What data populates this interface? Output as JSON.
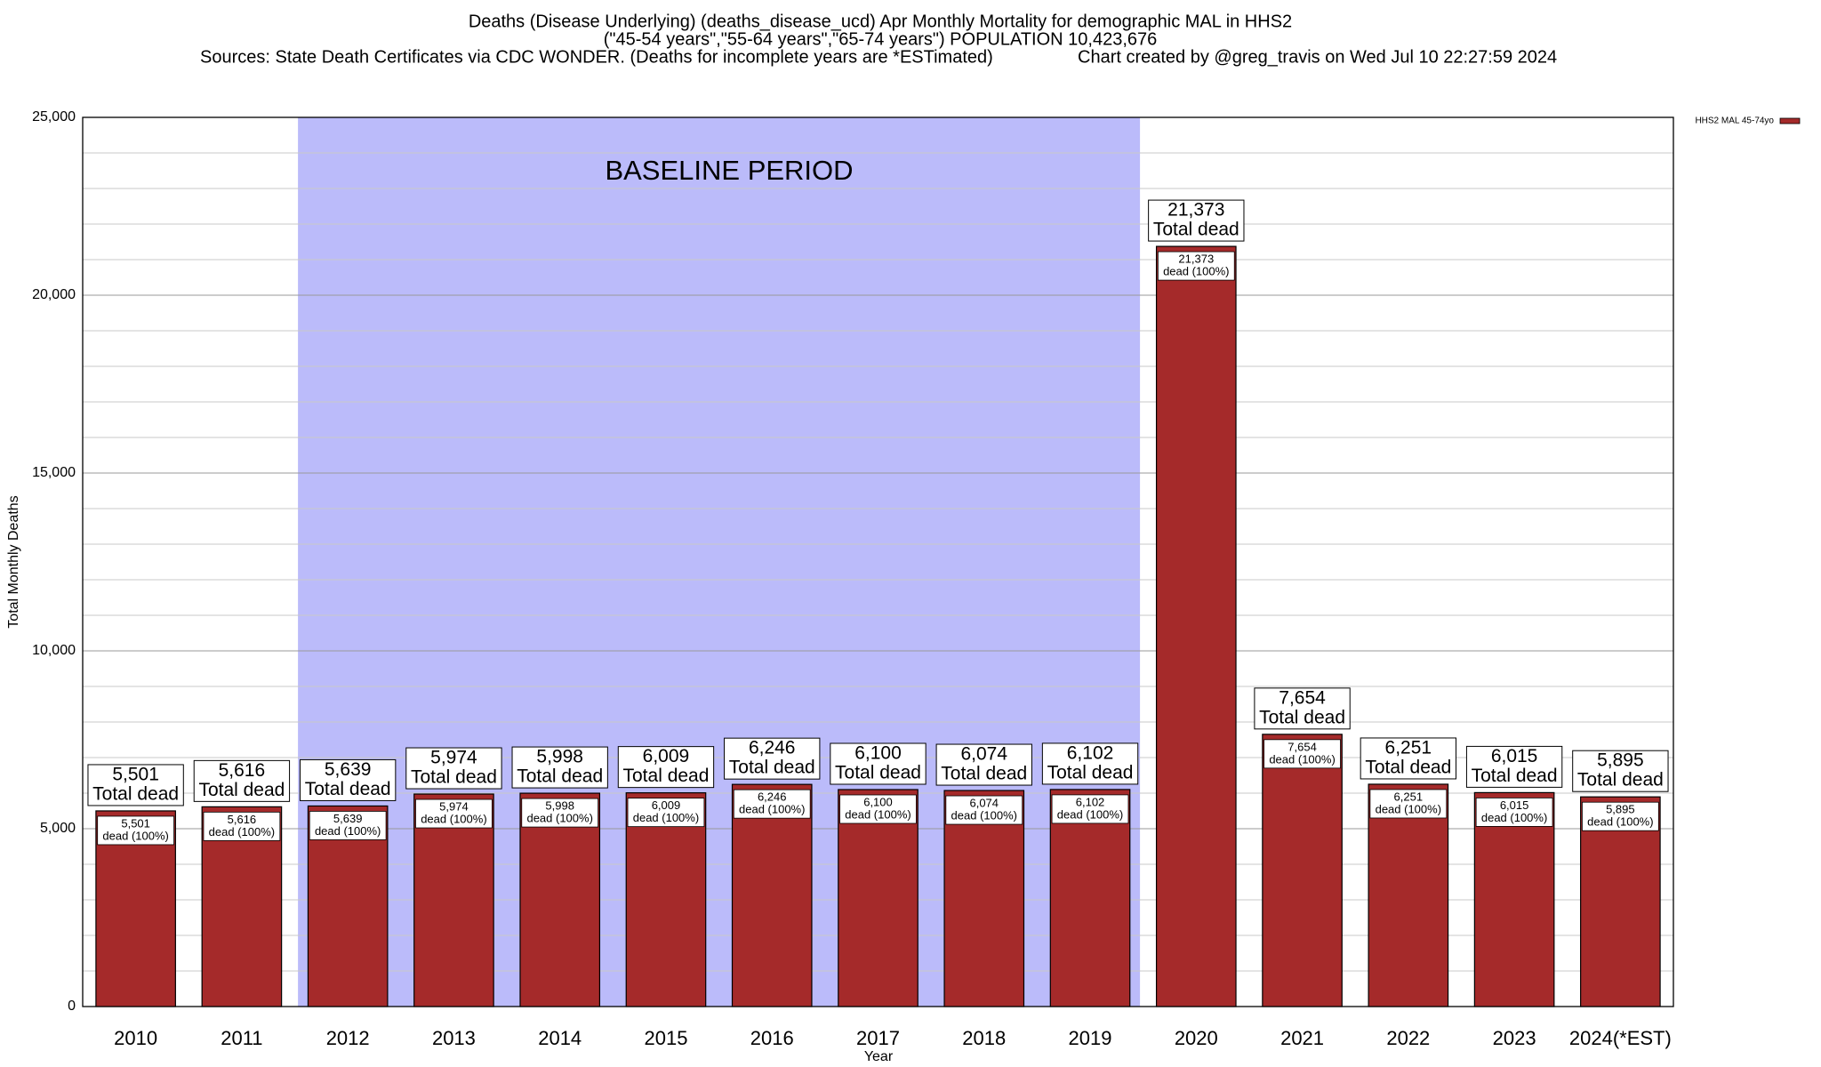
{
  "chart_data": {
    "type": "bar",
    "title": "Deaths (Disease Underlying) (deaths_disease_ucd) Apr Monthly Mortality for demographic MAL in HHS2",
    "subtitle": "(\"45-54 years\",\"55-64 years\",\"65-74 years\") POPULATION 10,423,676",
    "source": "Sources: State Death Certificates via CDC WONDER. (Deaths for incomplete years are *ESTimated)",
    "credit": "Chart created by @greg_travis on Wed Jul 10 22:27:59 2024",
    "x_label": "Year",
    "y_label": "Total Monthly Deaths",
    "categories": [
      "2010",
      "2011",
      "2012",
      "2013",
      "2014",
      "2015",
      "2016",
      "2017",
      "2018",
      "2019",
      "2020",
      "2021",
      "2022",
      "2023",
      "2024(*EST)"
    ],
    "series": [
      {
        "name": "HHS2 MAL 45-74yo",
        "color": "#a52a2a",
        "values": [
          5501,
          5616,
          5639,
          5974,
          5998,
          6009,
          6246,
          6100,
          6074,
          6102,
          21373,
          7654,
          6251,
          6015,
          5895
        ],
        "value_labels": [
          "5,501",
          "5,616",
          "5,639",
          "5,974",
          "5,998",
          "6,009",
          "6,246",
          "6,100",
          "6,074",
          "6,102",
          "21,373",
          "7,654",
          "6,251",
          "6,015",
          "5,895"
        ]
      }
    ],
    "total_label": "Total dead",
    "share_label": "dead (100%)",
    "baseline": {
      "label": "BASELINE PERIOD",
      "start": "2012",
      "end": "2019",
      "color": "#bbbbfa"
    },
    "ylim": [
      0,
      25000
    ],
    "yticks": [
      0,
      {
        "value": 5000,
        "label": "5,000"
      },
      {
        "value": 10000,
        "label": "10,000"
      },
      {
        "value": 15000,
        "label": "15,000"
      },
      {
        "value": 20000,
        "label": "20,000"
      },
      {
        "value": 25000,
        "label": "25,000"
      }
    ],
    "minor_yticks": [
      1000,
      2000,
      3000,
      4000,
      6000,
      7000,
      8000,
      9000,
      11000,
      12000,
      13000,
      14000,
      16000,
      17000,
      18000,
      19000,
      21000,
      22000,
      23000,
      24000
    ],
    "grid": true,
    "legend": "top-right"
  }
}
